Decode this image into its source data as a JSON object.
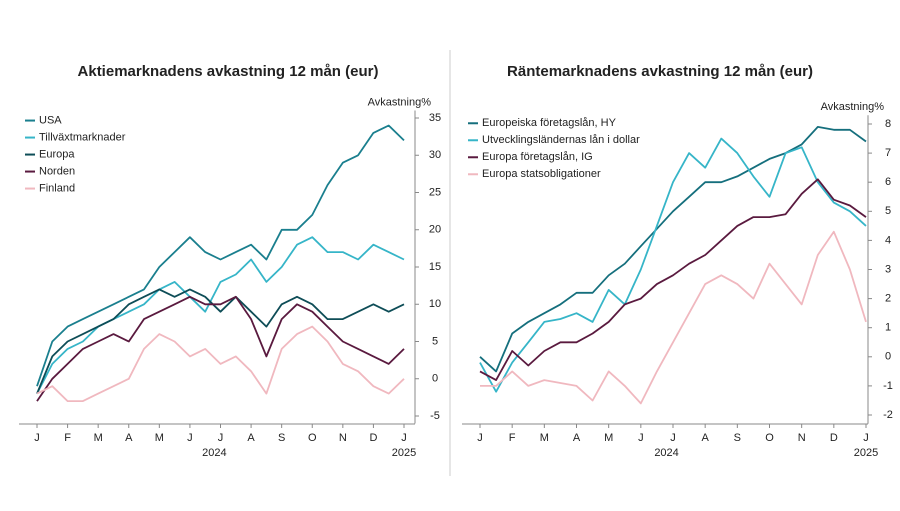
{
  "chart_data": [
    {
      "type": "line",
      "title": "Aktiemarknadens avkastning 12 mån (eur)",
      "ylabel": "Avkastning%",
      "x": [
        0,
        0.5,
        1,
        1.5,
        2,
        2.5,
        3,
        3.5,
        4,
        4.5,
        5,
        5.5,
        6,
        6.5,
        7,
        7.5,
        8,
        8.5,
        9,
        9.5,
        10,
        10.5,
        11,
        11.5,
        12
      ],
      "xlim": [
        0,
        12
      ],
      "xticks": [
        {
          "value": 0,
          "label": "J"
        },
        {
          "value": 1,
          "label": "F"
        },
        {
          "value": 2,
          "label": "M"
        },
        {
          "value": 3,
          "label": "A"
        },
        {
          "value": 4,
          "label": "M"
        },
        {
          "value": 5,
          "label": "J"
        },
        {
          "value": 6,
          "label": "J"
        },
        {
          "value": 7,
          "label": "A"
        },
        {
          "value": 8,
          "label": "S"
        },
        {
          "value": 9,
          "label": "O"
        },
        {
          "value": 10,
          "label": "N"
        },
        {
          "value": 11,
          "label": "D"
        },
        {
          "value": 12,
          "label": "J"
        }
      ],
      "annotations": [
        "2024",
        "2025"
      ],
      "ylim": [
        -6,
        36
      ],
      "yticks": [
        -5,
        0,
        5,
        10,
        15,
        20,
        25,
        30,
        35
      ],
      "legend": "upper left",
      "series": [
        {
          "name": "USA",
          "color": "#1a7f8e",
          "values": [
            -1,
            5,
            7,
            8,
            9,
            10,
            11,
            12,
            15,
            17,
            19,
            17,
            16,
            17,
            18,
            16,
            20,
            20,
            22,
            26,
            29,
            30,
            33,
            34,
            32
          ]
        },
        {
          "name": "Tillväxtmarknader",
          "color": "#36b5c8",
          "values": [
            -2,
            2,
            4,
            5,
            7,
            8,
            9,
            10,
            12,
            13,
            11,
            9,
            13,
            14,
            16,
            13,
            15,
            18,
            19,
            17,
            17,
            16,
            18,
            17,
            16
          ]
        },
        {
          "name": "Europa",
          "color": "#0e4d57",
          "values": [
            -2,
            3,
            5,
            6,
            7,
            8,
            10,
            11,
            12,
            11,
            12,
            11,
            9,
            11,
            9,
            7,
            10,
            11,
            10,
            8,
            8,
            9,
            10,
            9,
            10
          ]
        },
        {
          "name": "Norden",
          "color": "#5a1a3f",
          "values": [
            -3,
            0,
            2,
            4,
            5,
            6,
            5,
            8,
            9,
            10,
            11,
            10,
            10,
            11,
            8,
            3,
            8,
            10,
            9,
            7,
            5,
            4,
            3,
            2,
            4
          ]
        },
        {
          "name": "Finland",
          "color": "#f0b8bf",
          "values": [
            -2,
            -1,
            -3,
            -3,
            -2,
            -1,
            0,
            4,
            6,
            5,
            3,
            4,
            2,
            3,
            1,
            -2,
            4,
            6,
            7,
            5,
            2,
            1,
            -1,
            -2,
            0
          ]
        }
      ]
    },
    {
      "type": "line",
      "title": "Räntemarknadens avkastning 12 mån (eur)",
      "ylabel": "Avkastning%",
      "x": [
        0,
        0.5,
        1,
        1.5,
        2,
        2.5,
        3,
        3.5,
        4,
        4.5,
        5,
        5.5,
        6,
        6.5,
        7,
        7.5,
        8,
        8.5,
        9,
        9.5,
        10,
        10.5,
        11,
        11.5,
        12
      ],
      "xlim": [
        0,
        12
      ],
      "xticks": [
        {
          "value": 0,
          "label": "J"
        },
        {
          "value": 1,
          "label": "F"
        },
        {
          "value": 2,
          "label": "M"
        },
        {
          "value": 3,
          "label": "A"
        },
        {
          "value": 4,
          "label": "M"
        },
        {
          "value": 5,
          "label": "J"
        },
        {
          "value": 6,
          "label": "J"
        },
        {
          "value": 7,
          "label": "A"
        },
        {
          "value": 8,
          "label": "S"
        },
        {
          "value": 9,
          "label": "O"
        },
        {
          "value": 10,
          "label": "N"
        },
        {
          "value": 11,
          "label": "D"
        },
        {
          "value": 12,
          "label": "J"
        }
      ],
      "annotations": [
        "2024",
        "2025"
      ],
      "ylim": [
        -2.3,
        8.3
      ],
      "yticks": [
        -2,
        -1,
        0,
        1,
        2,
        3,
        4,
        5,
        6,
        7,
        8
      ],
      "legend": "upper left",
      "series": [
        {
          "name": "Europeiska företagslån, HY",
          "color": "#156f7d",
          "values": [
            0,
            -0.5,
            0.8,
            1.2,
            1.5,
            1.8,
            2.2,
            2.2,
            2.8,
            3.2,
            3.8,
            4.4,
            5,
            5.5,
            6,
            6,
            6.2,
            6.5,
            6.8,
            7,
            7.3,
            7.9,
            7.8,
            7.8,
            7.4
          ]
        },
        {
          "name": "Utvecklingsländernas lån i dollar",
          "color": "#36b5c8",
          "values": [
            -0.2,
            -1.2,
            -0.2,
            0.5,
            1.2,
            1.3,
            1.5,
            1.2,
            2.3,
            1.8,
            3,
            4.5,
            6,
            7,
            6.5,
            7.5,
            7,
            6.2,
            5.5,
            7,
            7.2,
            6,
            5.3,
            5,
            4.5
          ]
        },
        {
          "name": "Europa företagslån, IG",
          "color": "#5a1a3f",
          "values": [
            -0.5,
            -0.8,
            0.2,
            -0.3,
            0.2,
            0.5,
            0.5,
            0.8,
            1.2,
            1.8,
            2,
            2.5,
            2.8,
            3.2,
            3.5,
            4,
            4.5,
            4.8,
            4.8,
            4.9,
            5.6,
            6.1,
            5.4,
            5.2,
            4.8
          ]
        },
        {
          "name": "Europa statsobligationer",
          "color": "#f0b8bf",
          "values": [
            -1,
            -1,
            -0.5,
            -1,
            -0.8,
            -0.9,
            -1,
            -1.5,
            -0.5,
            -1,
            -1.6,
            -0.5,
            0.5,
            1.5,
            2.5,
            2.8,
            2.5,
            2,
            3.2,
            2.5,
            1.8,
            3.5,
            4.3,
            3.0,
            1.2
          ]
        }
      ]
    }
  ]
}
